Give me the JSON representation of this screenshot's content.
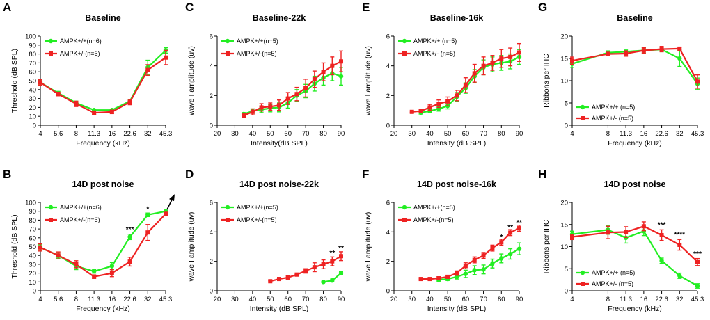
{
  "colors": {
    "green": "#22ee22",
    "red": "#ee2222"
  },
  "chart_data": [
    {
      "id": "A",
      "letter": "A",
      "type": "line",
      "title": "Baseline",
      "xlabel": "Frequency (kHz)",
      "ylabel": "Threshold (dB SPL)",
      "x_ticks": [
        "4",
        "5.6",
        "8",
        "11.3",
        "16",
        "22.6",
        "32",
        "45.3"
      ],
      "y_ticks": [
        "0",
        "10",
        "20",
        "30",
        "40",
        "50",
        "60",
        "70",
        "80",
        "90",
        "100"
      ],
      "ylim": [
        0,
        100
      ],
      "legend_position": "top-left",
      "series": [
        {
          "name": "AMPK+/+(n=6)",
          "color": "green",
          "values": [
            48,
            36,
            25,
            17,
            17,
            27,
            65,
            84
          ],
          "err": [
            3,
            2,
            2,
            1,
            1,
            2,
            8,
            3
          ]
        },
        {
          "name": "AMPK+/-(n=6)",
          "color": "red",
          "values": [
            48,
            35,
            24,
            14,
            15,
            26,
            62,
            76
          ],
          "err": [
            3,
            2,
            3,
            2,
            2,
            3,
            6,
            8
          ]
        }
      ],
      "annotations": []
    },
    {
      "id": "B",
      "letter": "B",
      "type": "line",
      "title": "14D post noise",
      "xlabel": "Frequency (kHz)",
      "ylabel": "Threshold (dB SPL)",
      "x_ticks": [
        "4",
        "5.6",
        "8",
        "11.3",
        "16",
        "22.6",
        "32",
        "45.3"
      ],
      "y_ticks": [
        "0",
        "10",
        "20",
        "30",
        "40",
        "50",
        "60",
        "70",
        "80",
        "90",
        "100"
      ],
      "ylim": [
        0,
        100
      ],
      "legend_position": "top-left",
      "series": [
        {
          "name": "AMPK+/+(n=6)",
          "color": "green",
          "values": [
            49,
            40,
            28,
            22,
            28,
            61,
            86,
            90
          ],
          "err": [
            3,
            3,
            4,
            2,
            4,
            3,
            2,
            1
          ]
        },
        {
          "name": "AMPK+/-(n=6)",
          "color": "red",
          "values": [
            49,
            40,
            30,
            16,
            20,
            33,
            66,
            87
          ],
          "err": [
            4,
            4,
            4,
            2,
            4,
            5,
            9,
            2
          ]
        }
      ],
      "annotations": [
        {
          "text": "***",
          "x_index": 5,
          "y": 67
        },
        {
          "text": "*",
          "x_index": 6,
          "y": 90
        }
      ],
      "arrow": true
    },
    {
      "id": "C",
      "letter": "C",
      "type": "line",
      "title": "Baseline-22k",
      "xlabel": "Intensity(dB SPL)",
      "ylabel": "wave I amplitude (uv)",
      "x_ticks": [
        "20",
        "30",
        "40",
        "50",
        "60",
        "70",
        "80",
        "90"
      ],
      "y_ticks": [
        "0",
        "2",
        "4",
        "6"
      ],
      "xlim": [
        20,
        90
      ],
      "ylim": [
        0,
        6
      ],
      "legend_position": "top-left",
      "series": [
        {
          "name": "AMPK+/+(n=5)",
          "color": "green",
          "x": [
            35,
            40,
            45,
            50,
            55,
            60,
            65,
            70,
            75,
            80,
            85,
            90
          ],
          "values": [
            0.75,
            0.95,
            1.05,
            1.15,
            1.2,
            1.5,
            2.0,
            2.3,
            2.8,
            3.2,
            3.5,
            3.3
          ],
          "err": [
            0.1,
            0.15,
            0.2,
            0.25,
            0.3,
            0.35,
            0.4,
            0.45,
            0.5,
            0.5,
            0.5,
            0.6
          ]
        },
        {
          "name": "AMPK+/-(n=5)",
          "color": "red",
          "x": [
            35,
            40,
            45,
            50,
            55,
            60,
            65,
            70,
            75,
            80,
            85,
            90
          ],
          "values": [
            0.65,
            0.9,
            1.2,
            1.25,
            1.35,
            1.8,
            2.1,
            2.5,
            3.1,
            3.6,
            4.0,
            4.3
          ],
          "err": [
            0.1,
            0.2,
            0.25,
            0.25,
            0.35,
            0.4,
            0.45,
            0.6,
            0.55,
            0.6,
            0.6,
            0.7
          ]
        }
      ],
      "annotations": []
    },
    {
      "id": "D",
      "letter": "D",
      "type": "line",
      "title": "14D post noise-22k",
      "xlabel": "Intensity (dB SPL)",
      "ylabel": "wave I amplitude (uv)",
      "x_ticks": [
        "20",
        "30",
        "40",
        "50",
        "60",
        "70",
        "80",
        "90"
      ],
      "y_ticks": [
        "0",
        "2",
        "4",
        "6"
      ],
      "xlim": [
        20,
        90
      ],
      "ylim": [
        0,
        6
      ],
      "legend_position": "top-left",
      "series": [
        {
          "name": "AMPK+/+(n=5)",
          "color": "green",
          "x": [
            80,
            85,
            90
          ],
          "values": [
            0.6,
            0.7,
            1.2
          ],
          "err": [
            0.05,
            0.1,
            0.1
          ]
        },
        {
          "name": "AMPK+/-(n=5)",
          "color": "red",
          "x": [
            50,
            55,
            60,
            65,
            70,
            75,
            80,
            85,
            90
          ],
          "values": [
            0.65,
            0.8,
            0.9,
            1.1,
            1.35,
            1.6,
            1.8,
            2.0,
            2.35
          ],
          "err": [
            0.05,
            0.1,
            0.1,
            0.1,
            0.15,
            0.3,
            0.3,
            0.3,
            0.3
          ]
        }
      ],
      "annotations": [
        {
          "text": "**",
          "x": 85,
          "y": 2.4
        },
        {
          "text": "**",
          "x": 90,
          "y": 2.75
        }
      ]
    },
    {
      "id": "E",
      "letter": "E",
      "type": "line",
      "title": "Baseline-16k",
      "xlabel": "Intensity (dB SPL)",
      "ylabel": "wave I amplitude (uv)",
      "x_ticks": [
        "20",
        "30",
        "40",
        "50",
        "60",
        "70",
        "80",
        "90"
      ],
      "y_ticks": [
        "0",
        "2",
        "4",
        "6"
      ],
      "xlim": [
        20,
        90
      ],
      "ylim": [
        0,
        6
      ],
      "legend_position": "top-left",
      "series": [
        {
          "name": "AMPK+/+ (n=5)",
          "color": "green",
          "x": [
            35,
            40,
            45,
            50,
            55,
            60,
            65,
            70,
            75,
            80,
            85,
            90
          ],
          "values": [
            0.85,
            0.95,
            1.1,
            1.3,
            1.9,
            2.5,
            3.3,
            3.9,
            4.1,
            4.2,
            4.3,
            4.6
          ],
          "err": [
            0.1,
            0.1,
            0.15,
            0.2,
            0.3,
            0.35,
            0.45,
            0.5,
            0.5,
            0.5,
            0.5,
            0.5
          ]
        },
        {
          "name": "AMPK+/- (n=5)",
          "color": "red",
          "x": [
            30,
            35,
            40,
            45,
            50,
            55,
            60,
            65,
            70,
            75,
            80,
            85,
            90
          ],
          "values": [
            0.9,
            0.95,
            1.2,
            1.45,
            1.6,
            2.0,
            2.7,
            3.5,
            4.0,
            4.2,
            4.5,
            4.6,
            4.9
          ],
          "err": [
            0.05,
            0.1,
            0.2,
            0.25,
            0.3,
            0.35,
            0.5,
            0.6,
            0.6,
            0.5,
            0.6,
            0.6,
            0.6
          ]
        }
      ],
      "annotations": []
    },
    {
      "id": "F",
      "letter": "F",
      "type": "line",
      "title": "14D post noise-16k",
      "xlabel": "Intensity (dB SPL)",
      "ylabel": "wave I amplitude (uv)",
      "x_ticks": [
        "20",
        "30",
        "40",
        "50",
        "60",
        "70",
        "80",
        "90"
      ],
      "y_ticks": [
        "0",
        "2",
        "4",
        "6"
      ],
      "xlim": [
        20,
        90
      ],
      "ylim": [
        0,
        6
      ],
      "legend_position": "top-left",
      "series": [
        {
          "name": "AMPK+/+(n=5)",
          "color": "green",
          "x": [
            45,
            50,
            55,
            60,
            65,
            70,
            75,
            80,
            85,
            90
          ],
          "values": [
            0.75,
            0.8,
            0.95,
            1.15,
            1.4,
            1.45,
            1.85,
            2.2,
            2.5,
            2.85
          ],
          "err": [
            0.1,
            0.1,
            0.15,
            0.25,
            0.3,
            0.3,
            0.3,
            0.3,
            0.35,
            0.4
          ]
        },
        {
          "name": "AMPK+/-(n=5)",
          "color": "red",
          "x": [
            35,
            40,
            45,
            50,
            55,
            60,
            65,
            70,
            75,
            80,
            85,
            90
          ],
          "values": [
            0.8,
            0.8,
            0.85,
            0.95,
            1.2,
            1.7,
            2.1,
            2.4,
            2.9,
            3.3,
            3.95,
            4.25
          ],
          "err": [
            0.05,
            0.05,
            0.1,
            0.1,
            0.15,
            0.2,
            0.2,
            0.2,
            0.2,
            0.2,
            0.2,
            0.2
          ]
        }
      ],
      "annotations": [
        {
          "text": "*",
          "x": 80,
          "y": 3.5
        },
        {
          "text": "**",
          "x": 85,
          "y": 4.15
        },
        {
          "text": "**",
          "x": 90,
          "y": 4.5
        }
      ]
    },
    {
      "id": "G",
      "letter": "G",
      "type": "line",
      "title": "Baseline",
      "xlabel": "Frequency (kHz)",
      "ylabel": "Ribbons per IHC",
      "x_ticks": [
        "4",
        "8",
        "11.3",
        "16",
        "22.6",
        "32",
        "45.3"
      ],
      "x_positions": [
        0,
        2,
        3,
        4,
        5,
        6,
        7
      ],
      "y_ticks": [
        "0",
        "5",
        "10",
        "15",
        "20"
      ],
      "ylim": [
        0,
        20
      ],
      "legend_position": "bottom-left",
      "series": [
        {
          "name": "AMPK+/+ (n=5)",
          "color": "green",
          "values": [
            13.8,
            16.3,
            16.5,
            16.8,
            17.0,
            15.0,
            9.3
          ],
          "err": [
            0.8,
            0.4,
            0.4,
            0.6,
            0.5,
            1.8,
            1.3
          ]
        },
        {
          "name": "AMPK+/- (n=5)",
          "color": "red",
          "values": [
            14.5,
            16.0,
            16.1,
            16.8,
            17.1,
            17.2,
            9.8
          ],
          "err": [
            0.8,
            0.4,
            0.6,
            0.6,
            0.6,
            0.3,
            1.5
          ]
        }
      ],
      "annotations": []
    },
    {
      "id": "H",
      "letter": "H",
      "type": "line",
      "title": "14D post noise",
      "xlabel": "Frequency (kHz)",
      "ylabel": "Ribbons per IHC",
      "x_ticks": [
        "4",
        "8",
        "11.3",
        "16",
        "22.6",
        "32",
        "45.3"
      ],
      "x_positions": [
        0,
        2,
        3,
        4,
        5,
        6,
        7
      ],
      "y_ticks": [
        "0",
        "5",
        "10",
        "15",
        "20"
      ],
      "ylim": [
        0,
        20
      ],
      "legend_position": "bottom-left",
      "series": [
        {
          "name": "AMPK+/+ (n=5)",
          "color": "green",
          "values": [
            12.8,
            13.8,
            12.0,
            13.5,
            6.8,
            3.4,
            1.1
          ],
          "err": [
            0.7,
            1.0,
            1.2,
            1.0,
            0.6,
            0.6,
            0.5
          ]
        },
        {
          "name": "AMPK+/- (n=5)",
          "color": "red",
          "values": [
            12.2,
            13.2,
            13.3,
            14.6,
            12.6,
            10.4,
            6.5
          ],
          "err": [
            0.6,
            1.4,
            1.2,
            1.0,
            1.2,
            1.2,
            0.8
          ]
        }
      ],
      "annotations": [
        {
          "text": "***",
          "x_index": 4,
          "y": 14.4
        },
        {
          "text": "****",
          "x_index": 5,
          "y": 12.2
        },
        {
          "text": "***",
          "x_index": 6,
          "y": 7.9
        }
      ]
    }
  ]
}
